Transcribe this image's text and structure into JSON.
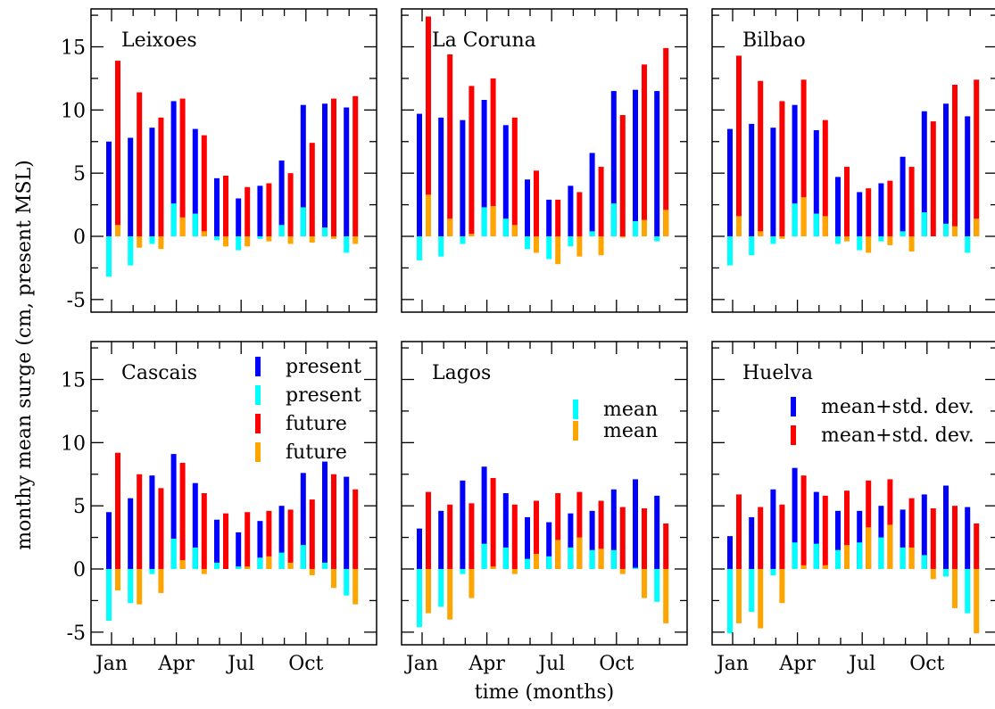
{
  "colors": {
    "present_std": "#0000ff",
    "present_mean": "#00ffff",
    "future_std": "#ff0000",
    "future_mean": "#ffa500"
  },
  "axis_labels": {
    "x": "time (months)",
    "y": "monthy mean surge (cm, present MSL)"
  },
  "legend_groups": [
    {
      "panel": 3,
      "items": [
        {
          "label": "present",
          "color_key": "present_std"
        },
        {
          "label": "present",
          "color_key": "present_mean"
        },
        {
          "label": "future",
          "color_key": "future_std"
        },
        {
          "label": "future",
          "color_key": "future_mean"
        }
      ]
    },
    {
      "panel": 4,
      "items": [
        {
          "label": "mean",
          "color_key": "present_mean"
        },
        {
          "label": "mean",
          "color_key": "future_mean"
        }
      ]
    },
    {
      "panel": 5,
      "items": [
        {
          "label": "mean+std. dev.",
          "color_key": "present_std"
        },
        {
          "label": "mean+std. dev.",
          "color_key": "future_std"
        }
      ]
    }
  ],
  "chart_data": {
    "type": "bar",
    "xlabel": "time (months)",
    "ylabel": "monthy mean surge (cm, present MSL)",
    "ylim": [
      -6,
      18
    ],
    "y_ticks": [
      -5,
      0,
      5,
      10,
      15
    ],
    "x_tick_months": [
      1,
      4,
      7,
      10
    ],
    "x_tick_labels": [
      "Jan",
      "Apr",
      "Jul",
      "Oct"
    ],
    "series_keys": [
      "present_std",
      "present_mean",
      "future_std",
      "future_mean"
    ],
    "panels": [
      {
        "title": "Leixoes",
        "present_mean": [
          -3.2,
          -2.3,
          -0.6,
          2.6,
          1.8,
          -0.3,
          -1.1,
          -0.2,
          0.9,
          2.3,
          0.7,
          -1.3
        ],
        "present_std": [
          7.5,
          7.8,
          8.6,
          10.7,
          8.5,
          4.6,
          3.0,
          4.0,
          6.0,
          10.4,
          10.5,
          10.2
        ],
        "future_mean": [
          0.9,
          -0.9,
          -1.0,
          1.5,
          0.4,
          -0.8,
          -0.8,
          -0.4,
          -0.6,
          -0.5,
          -0.2,
          -0.6
        ],
        "future_std": [
          13.9,
          11.4,
          9.4,
          10.9,
          8.0,
          4.8,
          3.9,
          4.2,
          5.0,
          7.4,
          10.9,
          11.1
        ]
      },
      {
        "title": "La Coruna",
        "present_mean": [
          -1.9,
          -1.6,
          -0.6,
          2.3,
          1.4,
          -1.0,
          -1.8,
          -0.8,
          0.4,
          2.6,
          1.2,
          -0.4
        ],
        "present_std": [
          9.7,
          9.4,
          9.2,
          10.8,
          8.8,
          4.5,
          2.9,
          4.0,
          6.6,
          11.5,
          11.6,
          11.5
        ],
        "future_mean": [
          3.3,
          1.4,
          0.2,
          2.4,
          0.9,
          -1.3,
          -2.2,
          -1.6,
          -1.5,
          -0.1,
          1.3,
          2.1
        ],
        "future_std": [
          17.4,
          14.4,
          11.9,
          12.5,
          9.4,
          5.2,
          2.9,
          3.5,
          5.5,
          9.6,
          13.6,
          14.9
        ]
      },
      {
        "title": "Bilbao",
        "present_mean": [
          -2.3,
          -1.5,
          -0.6,
          2.6,
          1.8,
          -0.6,
          -1.1,
          -0.4,
          0.4,
          1.9,
          1.0,
          -1.3
        ],
        "present_std": [
          8.5,
          8.9,
          8.6,
          10.4,
          8.4,
          4.7,
          3.5,
          4.2,
          6.3,
          9.9,
          10.5,
          9.5
        ],
        "future_mean": [
          1.6,
          0.4,
          -0.2,
          3.1,
          1.6,
          -0.4,
          -1.3,
          -0.7,
          -1.2,
          0.0,
          0.8,
          1.4
        ],
        "future_std": [
          14.3,
          12.3,
          10.7,
          12.4,
          9.2,
          5.5,
          3.8,
          4.4,
          5.5,
          9.1,
          12.0,
          12.4
        ]
      },
      {
        "title": "Cascais",
        "present_mean": [
          -4.1,
          -2.7,
          -0.4,
          2.4,
          1.7,
          0.5,
          0.2,
          0.9,
          1.3,
          1.9,
          0.5,
          -2.1
        ],
        "present_std": [
          4.5,
          5.6,
          7.4,
          9.1,
          6.8,
          3.9,
          2.9,
          3.8,
          5.0,
          7.6,
          8.5,
          7.3
        ],
        "future_mean": [
          -1.7,
          -2.8,
          -1.9,
          0.7,
          -0.4,
          0.0,
          0.2,
          1.0,
          0.5,
          -0.5,
          -1.5,
          -2.8
        ],
        "future_std": [
          9.2,
          7.5,
          6.4,
          8.4,
          6.0,
          4.4,
          4.5,
          4.6,
          4.7,
          5.5,
          7.5,
          6.3
        ]
      },
      {
        "title": "Lagos",
        "present_mean": [
          -4.6,
          -3.0,
          -0.4,
          2.0,
          1.7,
          0.8,
          1.0,
          1.7,
          1.5,
          1.5,
          0.1,
          -2.6
        ],
        "present_std": [
          3.2,
          4.6,
          7.0,
          8.1,
          6.0,
          4.1,
          3.7,
          4.4,
          4.6,
          6.3,
          7.1,
          5.8
        ],
        "future_mean": [
          -3.5,
          -4.0,
          -2.3,
          0.2,
          -0.4,
          1.2,
          2.3,
          2.5,
          1.6,
          -0.4,
          -2.3,
          -4.3
        ],
        "future_std": [
          6.1,
          5.1,
          5.2,
          7.2,
          5.1,
          5.4,
          6.0,
          6.1,
          5.4,
          4.9,
          4.8,
          3.6
        ]
      },
      {
        "title": "Huelva",
        "present_mean": [
          -5.1,
          -3.4,
          -0.5,
          2.1,
          2.0,
          1.5,
          2.1,
          2.5,
          1.7,
          1.1,
          -0.6,
          -3.5
        ],
        "present_std": [
          2.6,
          4.1,
          6.3,
          8.0,
          6.1,
          4.6,
          4.6,
          5.0,
          4.7,
          5.9,
          6.6,
          4.9
        ],
        "future_mean": [
          -4.3,
          -4.7,
          -2.7,
          0.3,
          0.3,
          1.9,
          3.3,
          3.5,
          1.7,
          -0.8,
          -3.1,
          -5.1
        ],
        "future_std": [
          5.9,
          4.9,
          5.1,
          7.4,
          5.8,
          6.2,
          7.0,
          7.1,
          5.6,
          4.8,
          5.0,
          3.6
        ]
      }
    ]
  }
}
